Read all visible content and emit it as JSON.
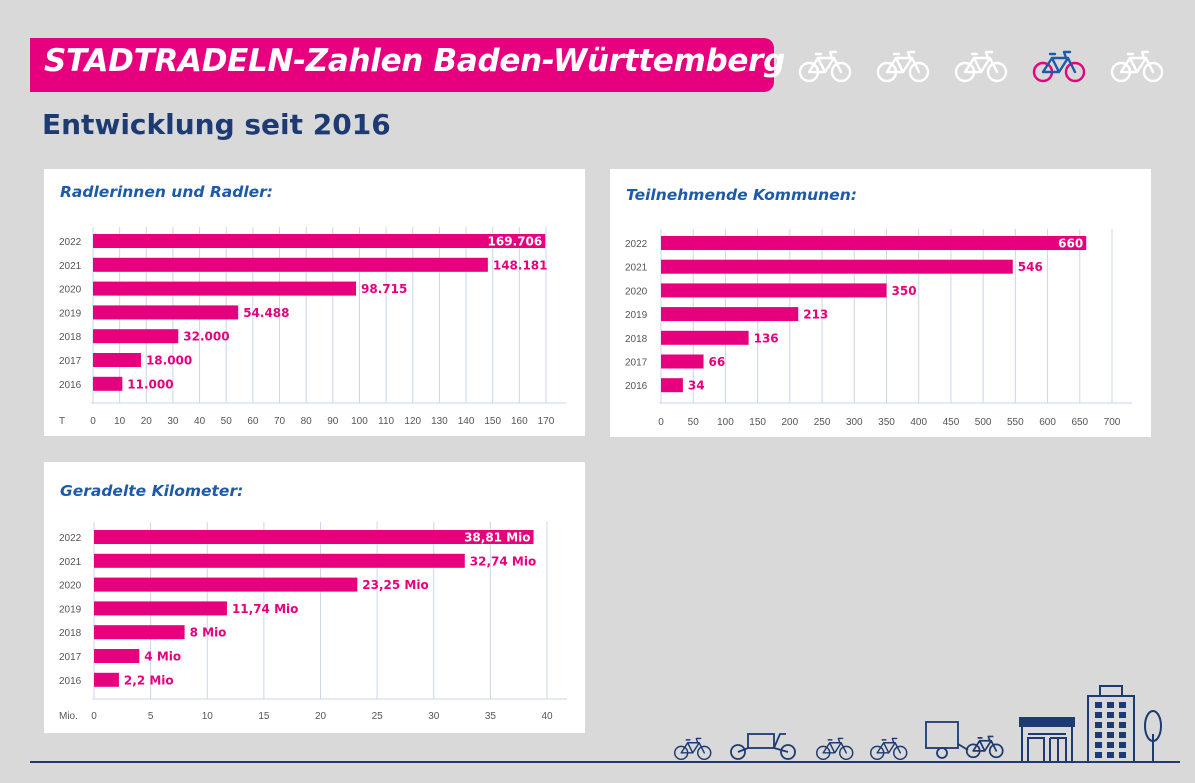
{
  "header": {
    "title": "STADTRADELN-Zahlen Baden-Württemberg",
    "subtitle": "Entwicklung seit 2016",
    "bike_icons": [
      "bicycle-icon",
      "bicycle-icon",
      "bicycle-icon",
      "bicycle-icon",
      "bicycle-icon"
    ],
    "highlight_index": 3
  },
  "colors": {
    "bar": "#e6007e",
    "title_blue": "#1d5aa8",
    "heading_navy": "#1d3a72",
    "grid": "#c9d7ea",
    "background": "#d9d9d9",
    "icon_light": "#ffffff",
    "icon_dark": "#1d3a72"
  },
  "chart_data": [
    {
      "type": "bar",
      "orientation": "horizontal",
      "title": "Radlerinnen und Radler:",
      "unit_label": "T",
      "categories": [
        "2022",
        "2021",
        "2020",
        "2019",
        "2018",
        "2017",
        "2016"
      ],
      "values": [
        169.706,
        148.181,
        98.715,
        54.488,
        32.0,
        18.0,
        11.0
      ],
      "data_labels": [
        "169.706",
        "148.181",
        "98.715",
        "54.488",
        "32.000",
        "18.000",
        "11.000"
      ],
      "xlim": [
        0,
        170
      ],
      "ticks": [
        0,
        10,
        20,
        30,
        40,
        50,
        60,
        70,
        80,
        90,
        100,
        110,
        120,
        130,
        140,
        150,
        160,
        170
      ],
      "tick_labels": [
        "0",
        "10",
        "20",
        "30",
        "40",
        "50",
        "60",
        "70",
        "80",
        "90",
        "100",
        "110",
        "120",
        "130",
        "140",
        "150",
        "160",
        "170"
      ],
      "grid": true
    },
    {
      "type": "bar",
      "orientation": "horizontal",
      "title": "Teilnehmende Kommunen:",
      "unit_label": "",
      "categories": [
        "2022",
        "2021",
        "2020",
        "2019",
        "2018",
        "2017",
        "2016"
      ],
      "values": [
        660,
        546,
        350,
        213,
        136,
        66,
        34
      ],
      "data_labels": [
        "660",
        "546",
        "350",
        "213",
        "136",
        "66",
        "34"
      ],
      "xlim": [
        0,
        700
      ],
      "ticks": [
        0,
        50,
        100,
        150,
        200,
        250,
        300,
        350,
        400,
        450,
        500,
        550,
        600,
        650,
        700
      ],
      "tick_labels": [
        "0",
        "50",
        "100",
        "150",
        "200",
        "250",
        "300",
        "350",
        "400",
        "450",
        "500",
        "550",
        "600",
        "650",
        "700"
      ],
      "grid": true
    },
    {
      "type": "bar",
      "orientation": "horizontal",
      "title": "Geradelte Kilometer:",
      "unit_label": "Mio.",
      "categories": [
        "2022",
        "2021",
        "2020",
        "2019",
        "2018",
        "2017",
        "2016"
      ],
      "values": [
        38.81,
        32.74,
        23.25,
        11.74,
        8,
        4,
        2.2
      ],
      "data_labels": [
        "38,81 Mio",
        "32,74 Mio",
        "23,25 Mio",
        "11,74 Mio",
        "8 Mio",
        "4 Mio",
        "2,2 Mio"
      ],
      "xlim": [
        0,
        40
      ],
      "ticks": [
        0,
        5,
        10,
        15,
        20,
        25,
        30,
        35,
        40
      ],
      "tick_labels": [
        "0",
        "5",
        "10",
        "15",
        "20",
        "25",
        "30",
        "35",
        "40"
      ],
      "grid": true
    }
  ],
  "footer": {
    "icons": [
      "bicycle-icon",
      "cargo-bike-icon",
      "bicycle-icon",
      "bicycle-icon",
      "bike-trailer-icon",
      "shop-building-icon",
      "office-building-icon",
      "tree-icon"
    ]
  }
}
